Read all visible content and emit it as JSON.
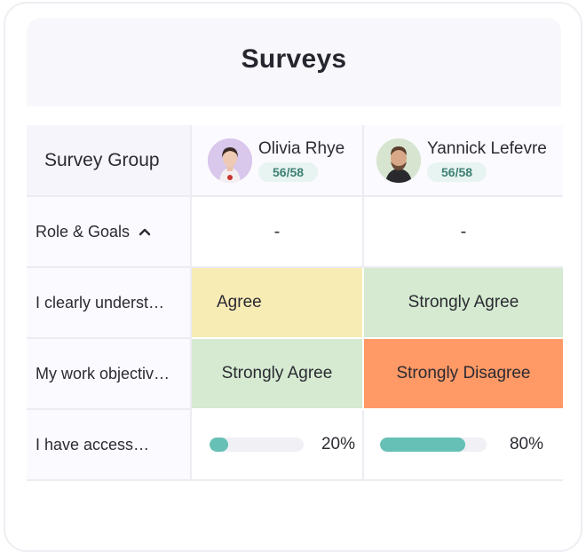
{
  "title": "Surveys",
  "table": {
    "group_header": "Survey Group",
    "users": [
      {
        "name": "Olivia Rhye",
        "score": "56/58",
        "avatar": "avatar-woman"
      },
      {
        "name": "Yannick Lefevre",
        "score": "56/58",
        "avatar": "avatar-man"
      }
    ],
    "section": {
      "label": "Role & Goals",
      "expanded": true,
      "values": [
        "-",
        "-"
      ]
    },
    "rows": [
      {
        "label": "I clearly underst…",
        "responses": [
          "Agree",
          "Strongly Agree"
        ]
      },
      {
        "label": "My work objectiv…",
        "responses": [
          "Strongly Agree",
          "Strongly Disagree"
        ]
      },
      {
        "label": "I have access…",
        "progress": [
          {
            "value": 0.2,
            "text": "20%"
          },
          {
            "value": 0.8,
            "text": "80%"
          }
        ]
      }
    ]
  },
  "colors": {
    "agree": "#f8ecb5",
    "strongly_agree": "#d5ead0",
    "strongly_disagree": "#ff9966",
    "progress": "#66c0b6",
    "score_badge": "#e7f4f1"
  }
}
